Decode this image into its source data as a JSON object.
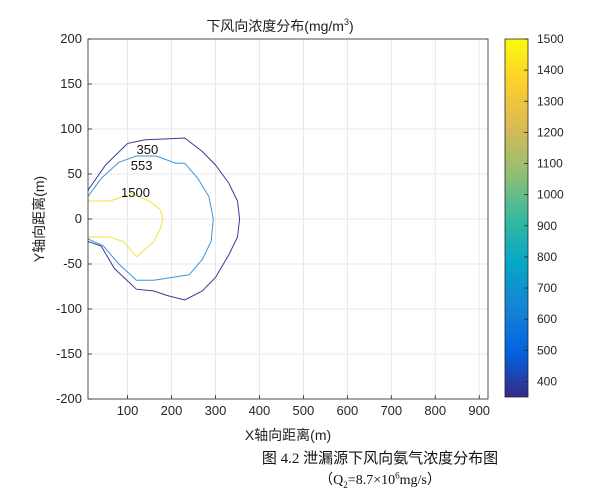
{
  "chart_data": {
    "type": "contour",
    "title": "下风向浓度分布(mg/m",
    "title_sup": "3",
    "title_suffix": ")",
    "xlabel": "X轴向距离(m)",
    "ylabel": "Y轴向距离(m)",
    "xlim": [
      10,
      920
    ],
    "ylim": [
      -200,
      200
    ],
    "x_ticks": [
      100,
      200,
      300,
      400,
      500,
      600,
      700,
      800,
      900
    ],
    "y_ticks": [
      -200,
      -150,
      -100,
      -50,
      0,
      50,
      100,
      150,
      200
    ],
    "grid": true,
    "colorbar": {
      "range": [
        350,
        1500
      ],
      "ticks": [
        400,
        500,
        600,
        700,
        800,
        900,
        1000,
        1100,
        1200,
        1300,
        1400,
        1500
      ],
      "colors": [
        "#352a87",
        "#0363e1",
        "#1485d4",
        "#06a7c6",
        "#38b99e",
        "#92bf73",
        "#d9ba56",
        "#fcce2e",
        "#f9fb0e"
      ]
    },
    "contours": [
      {
        "level": 350,
        "label": "350",
        "label_at": [
          145,
          78
        ],
        "color": "#3a3a96",
        "points": [
          [
            10,
            32
          ],
          [
            50,
            60
          ],
          [
            100,
            84
          ],
          [
            140,
            88
          ],
          [
            190,
            89
          ],
          [
            230,
            90
          ],
          [
            270,
            75
          ],
          [
            300,
            60
          ],
          [
            330,
            40
          ],
          [
            350,
            20
          ],
          [
            355,
            0
          ],
          [
            350,
            -20
          ],
          [
            330,
            -40
          ],
          [
            300,
            -65
          ],
          [
            270,
            -80
          ],
          [
            230,
            -90
          ],
          [
            190,
            -85
          ],
          [
            160,
            -80
          ],
          [
            120,
            -78
          ],
          [
            70,
            -55
          ],
          [
            40,
            -30
          ],
          [
            10,
            -25
          ]
        ]
      },
      {
        "level": 553,
        "label": "553",
        "label_at": [
          132,
          60
        ],
        "color": "#3b95d6",
        "points": [
          [
            10,
            25
          ],
          [
            40,
            45
          ],
          [
            80,
            63
          ],
          [
            120,
            70
          ],
          [
            165,
            70
          ],
          [
            210,
            62
          ],
          [
            230,
            62
          ],
          [
            260,
            45
          ],
          [
            285,
            25
          ],
          [
            295,
            0
          ],
          [
            290,
            -25
          ],
          [
            270,
            -45
          ],
          [
            240,
            -62
          ],
          [
            200,
            -65
          ],
          [
            160,
            -68
          ],
          [
            120,
            -68
          ],
          [
            80,
            -50
          ],
          [
            45,
            -30
          ],
          [
            10,
            -22
          ]
        ]
      },
      {
        "level": 1500,
        "label": "1500",
        "label_at": [
          118,
          30
        ],
        "color": "#f2e53a",
        "points": [
          [
            10,
            20
          ],
          [
            60,
            20
          ],
          [
            90,
            25
          ],
          [
            110,
            28
          ],
          [
            150,
            20
          ],
          [
            175,
            10
          ],
          [
            180,
            0
          ],
          [
            175,
            -10
          ],
          [
            160,
            -25
          ],
          [
            120,
            -42
          ],
          [
            90,
            -25
          ],
          [
            60,
            -20
          ],
          [
            10,
            -20
          ]
        ]
      }
    ]
  },
  "caption": {
    "line1": "图 4.2  泄漏源下风向氨气浓度分布图",
    "line2_prefix": "（Q",
    "line2_sub": "2",
    "line2_mid": "=8.7×10",
    "line2_sup": "6",
    "line2_suffix": "mg/s）"
  }
}
